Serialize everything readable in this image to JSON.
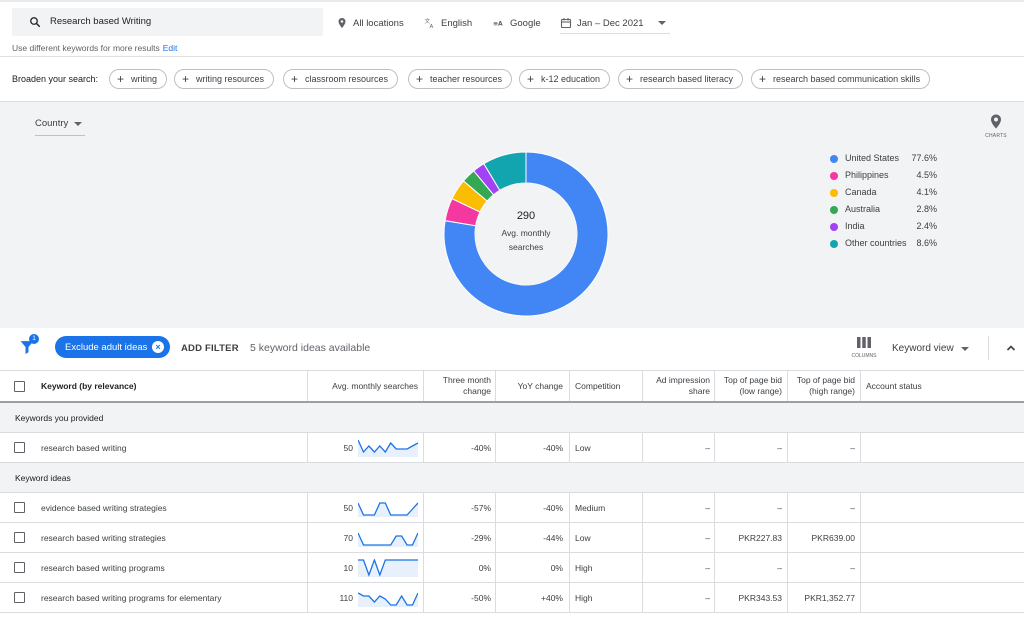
{
  "search": {
    "value": "Research based Writing",
    "hint": "Use different keywords for more results",
    "edit_label": "Edit",
    "location": "All locations",
    "language": "English",
    "network": "Google",
    "date_range": "Jan – Dec 2021"
  },
  "broaden": {
    "label": "Broaden your search:",
    "chips": [
      "writing",
      "writing resources",
      "classroom resources",
      "teacher resources",
      "k-12 education",
      "research based literacy",
      "research based communication skills"
    ]
  },
  "chart": {
    "selector": "Country",
    "charts_label": "CHARTS",
    "center_value": "290",
    "center_label": "Avg. monthly searches",
    "chart_data": {
      "type": "pie",
      "categories": [
        "United States",
        "Philippines",
        "Canada",
        "Australia",
        "India",
        "Other countries"
      ],
      "values": [
        77.6,
        4.5,
        4.1,
        2.8,
        2.4,
        8.6
      ],
      "labels": [
        "77.6%",
        "4.5%",
        "4.1%",
        "2.8%",
        "2.4%",
        "8.6%"
      ],
      "colors": [
        "#4285f4",
        "#f538a0",
        "#fbbc04",
        "#34a853",
        "#a142f4",
        "#12a4af"
      ],
      "legend": "right"
    }
  },
  "filters": {
    "badge_count": "1",
    "exclude_chip": "Exclude adult ideas",
    "add_filter": "ADD FILTER",
    "available": "5 keyword ideas available",
    "columns_label": "COLUMNS",
    "view": "Keyword view"
  },
  "table": {
    "headers": {
      "keyword": "Keyword (by relevance)",
      "avg": "Avg. monthly searches",
      "three_month_1": "Three month",
      "three_month_2": "change",
      "yoy": "YoY change",
      "competition": "Competition",
      "ad_share_1": "Ad impression",
      "ad_share_2": "share",
      "bid_low_1": "Top of page bid",
      "bid_low_2": "(low range)",
      "bid_high_1": "Top of page bid",
      "bid_high_2": "(high range)",
      "status": "Account status"
    },
    "section_provided": "Keywords you provided",
    "section_ideas": "Keyword ideas",
    "rows": [
      {
        "keyword": "research based writing",
        "avg": "50",
        "three_month": "-40%",
        "yoy": "-40%",
        "competition": "Low",
        "ad_share": "–",
        "bid_low": "–",
        "bid_high": "–",
        "trend": [
          5,
          1,
          3,
          1,
          3,
          1,
          4,
          2,
          2,
          2,
          3,
          4
        ]
      },
      {
        "keyword": "evidence based writing strategies",
        "avg": "50",
        "three_month": "-57%",
        "yoy": "-40%",
        "competition": "Medium",
        "ad_share": "–",
        "bid_low": "–",
        "bid_high": "–",
        "trend": [
          4,
          0,
          0,
          0,
          4,
          4,
          0,
          0,
          0,
          0,
          2,
          4
        ]
      },
      {
        "keyword": "research based writing strategies",
        "avg": "70",
        "three_month": "-29%",
        "yoy": "-44%",
        "competition": "Low",
        "ad_share": "–",
        "bid_low": "PKR227.83",
        "bid_high": "PKR639.00",
        "trend": [
          4,
          0,
          0,
          0,
          0,
          0,
          0,
          3,
          3,
          0,
          0,
          4
        ]
      },
      {
        "keyword": "research based writing programs",
        "avg": "10",
        "three_month": "0%",
        "yoy": "0%",
        "competition": "High",
        "ad_share": "–",
        "bid_low": "–",
        "bid_high": "–",
        "trend": [
          5,
          5,
          0,
          5,
          0,
          5,
          5,
          5,
          5,
          5,
          5,
          5
        ]
      },
      {
        "keyword": "research based writing programs for elementary",
        "avg": "110",
        "three_month": "-50%",
        "yoy": "+40%",
        "competition": "High",
        "ad_share": "–",
        "bid_low": "PKR343.53",
        "bid_high": "PKR1,352.77",
        "trend": [
          4,
          3,
          3,
          1,
          3,
          2,
          0,
          0,
          3,
          0,
          0,
          4
        ]
      }
    ]
  }
}
